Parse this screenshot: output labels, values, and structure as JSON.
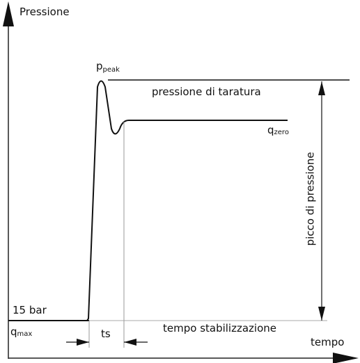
{
  "y_axis_label": "Pressione",
  "x_axis_label": "tempo",
  "labels": {
    "p_peak": {
      "main": "p",
      "sub": "peak"
    },
    "setting_pressure": "pressione di taratura",
    "q_zero": {
      "main": "q",
      "sub": "zero"
    },
    "pressure_peak": "picco di pressione",
    "start_pressure": "15 bar",
    "q_max": {
      "main": "q",
      "sub": "max"
    },
    "ts": "ts",
    "stabilization_time": "tempo stabilizzazione"
  }
}
